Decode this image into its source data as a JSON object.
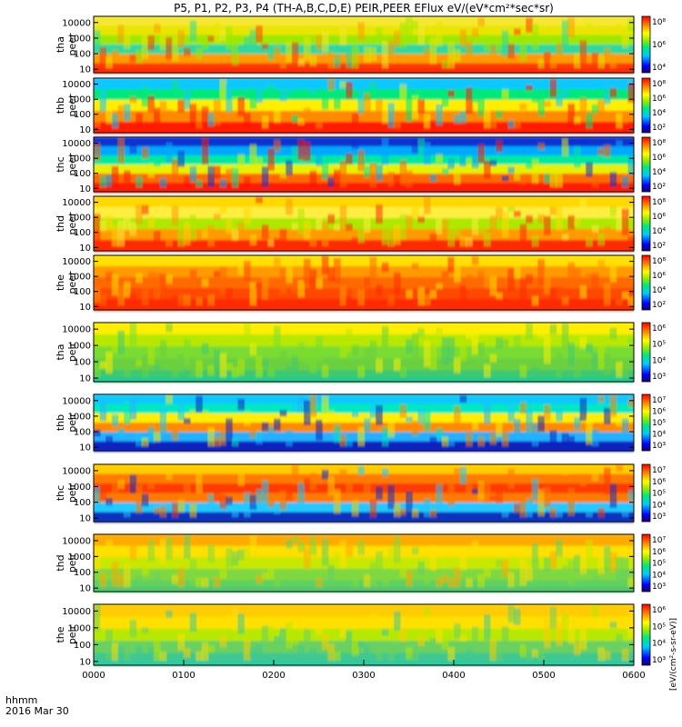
{
  "chart_data": {
    "type": "heatmap",
    "title": "P5, P1, P2, P3, P4 (TH-A,B,C,D,E) PEIR,PEER EFlux eV/(eV*cm²*sec*sr)",
    "x_ticks": [
      "0000",
      "0100",
      "0200",
      "0300",
      "0400",
      "0500",
      "0600"
    ],
    "x_range": [
      "0000",
      "0600"
    ],
    "time_label": "hhmm",
    "date_label": "2016 Mar 30",
    "y_scale": "log",
    "y_ticks": [
      "10",
      "100",
      "1000",
      "10000"
    ],
    "colorbar_unit_label": "[eV/(cm²-s-sr-eV)]",
    "colorbar_ticks": [
      "10²",
      "10⁴",
      "10⁶",
      "10⁸"
    ],
    "panels": [
      {
        "probe": "tha",
        "instrument": "peer",
        "label_line1": "tha",
        "label_line2": "peer",
        "colorbar_ticks": [
          "10⁴",
          "10⁶",
          "10⁸"
        ]
      },
      {
        "probe": "thb",
        "instrument": "peer",
        "label_line1": "thb",
        "label_line2": "peer",
        "colorbar_ticks": [
          "10²",
          "10⁴",
          "10⁶",
          "10⁸"
        ]
      },
      {
        "probe": "thc",
        "instrument": "peer",
        "label_line1": "thc",
        "label_line2": "peer",
        "colorbar_ticks": [
          "10²",
          "10⁴",
          "10⁶",
          "10⁸"
        ]
      },
      {
        "probe": "thd",
        "instrument": "peer",
        "label_line1": "thd",
        "label_line2": "peer",
        "colorbar_ticks": [
          "10²",
          "10⁴",
          "10⁶",
          "10⁸"
        ]
      },
      {
        "probe": "the",
        "instrument": "peer",
        "label_line1": "the",
        "label_line2": "peer",
        "colorbar_ticks": [
          "10²",
          "10⁴",
          "10⁶",
          "10⁸"
        ]
      },
      {
        "probe": "tha",
        "instrument": "peir",
        "label_line1": "tha",
        "label_line2": "peir",
        "colorbar_ticks": [
          "10³",
          "10⁴",
          "10⁵",
          "10⁶"
        ]
      },
      {
        "probe": "thb",
        "instrument": "peir",
        "label_line1": "thb",
        "label_line2": "peir",
        "colorbar_ticks": [
          "10³",
          "10⁴",
          "10⁵",
          "10⁶",
          "10⁷"
        ]
      },
      {
        "probe": "thc",
        "instrument": "peir",
        "label_line1": "thc",
        "label_line2": "peir",
        "colorbar_ticks": [
          "10³",
          "10⁴",
          "10⁵",
          "10⁶",
          "10⁷"
        ]
      },
      {
        "probe": "thd",
        "instrument": "peir",
        "label_line1": "thd",
        "label_line2": "peir",
        "colorbar_ticks": [
          "10³",
          "10⁴",
          "10⁵",
          "10⁶",
          "10⁷"
        ]
      },
      {
        "probe": "the",
        "instrument": "peir",
        "label_line1": "the",
        "label_line2": "peir",
        "colorbar_ticks": [
          "10³",
          "10⁴",
          "10⁵",
          "10⁶"
        ]
      }
    ]
  }
}
